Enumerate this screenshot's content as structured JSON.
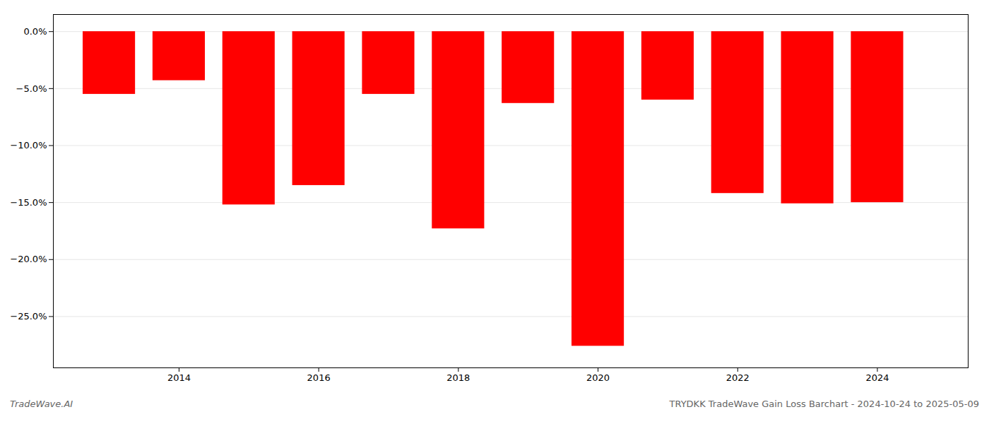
{
  "chart_data": {
    "type": "bar",
    "x": [
      2013,
      2014,
      2015,
      2016,
      2017,
      2018,
      2019,
      2020,
      2021,
      2022,
      2023,
      2024
    ],
    "values": [
      -5.5,
      -4.3,
      -15.2,
      -13.5,
      -5.5,
      -17.3,
      -6.3,
      -27.6,
      -6.0,
      -14.2,
      -15.1,
      -15.0
    ],
    "color": "#ff0000",
    "xlim": [
      2012.2,
      2025.3
    ],
    "xticks": [
      2014,
      2016,
      2018,
      2020,
      2022,
      2024
    ],
    "ylim": [
      -29.5,
      1.5
    ],
    "yticks": [
      {
        "value": 0,
        "label": "0.0%"
      },
      {
        "value": -5,
        "label": "−5.0%"
      },
      {
        "value": -10,
        "label": "−10.0%"
      },
      {
        "value": -15,
        "label": "−15.0%"
      },
      {
        "value": -20,
        "label": "−20.0%"
      },
      {
        "value": -25,
        "label": "−25.0%"
      }
    ],
    "grid": true,
    "annotations": [
      "TradeWave.AI",
      "TRYDKK TradeWave Gain Loss Barchart - 2024-10-24 to 2025-05-09"
    ]
  }
}
